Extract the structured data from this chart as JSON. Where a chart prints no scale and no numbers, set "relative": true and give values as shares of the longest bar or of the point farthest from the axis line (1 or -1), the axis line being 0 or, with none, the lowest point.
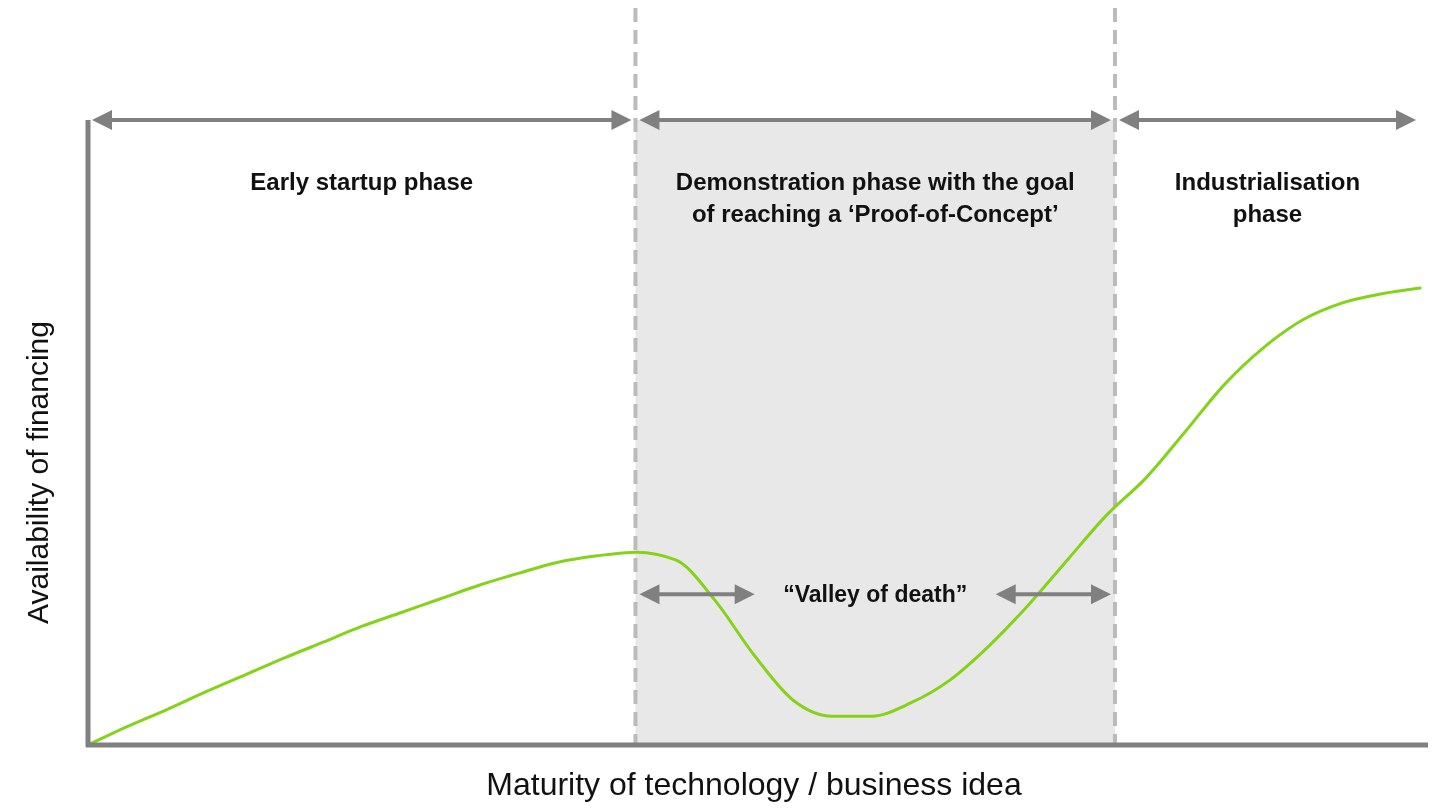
{
  "chart_data": {
    "type": "line",
    "relative": true,
    "xlabel": "Maturity of technology / business idea",
    "ylabel": "Availability of financing",
    "categories": [
      null,
      null,
      null,
      null,
      null,
      null,
      null,
      null,
      null,
      null,
      null,
      null,
      null,
      null,
      null,
      null,
      null,
      null,
      null,
      null,
      null,
      null,
      null,
      null,
      null,
      null,
      null,
      null,
      null,
      null,
      null,
      null,
      null,
      null,
      null
    ],
    "series": [
      {
        "color": "#84d21a",
        "values": [
          0,
          0.04,
          0.077,
          0.116,
          0.153,
          0.19,
          0.225,
          0.26,
          0.29,
          0.32,
          0.35,
          0.376,
          0.4,
          0.414,
          0.422,
          0.405,
          0.317,
          0.197,
          0.098,
          0.063,
          0.063,
          0.092,
          0.142,
          0.217,
          0.306,
          0.405,
          0.503,
          0.584,
          0.685,
          0.788,
          0.869,
          0.93,
          0.967,
          0.987,
          1
        ]
      }
    ],
    "annotations": [
      "Early startup phase",
      "Demonstration phase with the goal of reaching a ‘Proof-of-Concept’",
      "Industrialisation phase",
      "“Valley of death”"
    ],
    "marker": "none",
    "line_style": "solid"
  }
}
